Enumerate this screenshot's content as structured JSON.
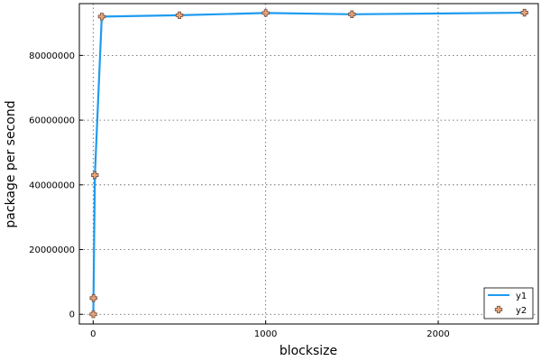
{
  "chart_data": {
    "type": "line",
    "xlabel": "blocksize",
    "ylabel": "package per second",
    "xlim": [
      -80,
      2580
    ],
    "ylim": [
      -3000000,
      96000000
    ],
    "x_ticks": [
      0,
      1000,
      2000
    ],
    "y_ticks": [
      0,
      20000000,
      40000000,
      60000000,
      80000000
    ],
    "x_tick_labels": [
      "0",
      "1000",
      "2000"
    ],
    "y_tick_labels": [
      "0",
      "20000000",
      "40000000",
      "60000000",
      "80000000"
    ],
    "grid": true,
    "legend_position": "bottom-right",
    "x": [
      1,
      2,
      10,
      50,
      500,
      1000,
      1500,
      2500
    ],
    "series": [
      {
        "name": "y1",
        "style": "line",
        "color": "#1f9bef",
        "values": [
          0,
          5000000,
          43000000,
          92000000,
          92400000,
          93100000,
          92700000,
          93200000
        ]
      },
      {
        "name": "y2",
        "style": "markers",
        "marker": "cross",
        "color": "#e8a47c",
        "values": [
          0,
          5000000,
          43000000,
          92000000,
          92400000,
          93100000,
          92700000,
          93200000
        ]
      }
    ]
  }
}
